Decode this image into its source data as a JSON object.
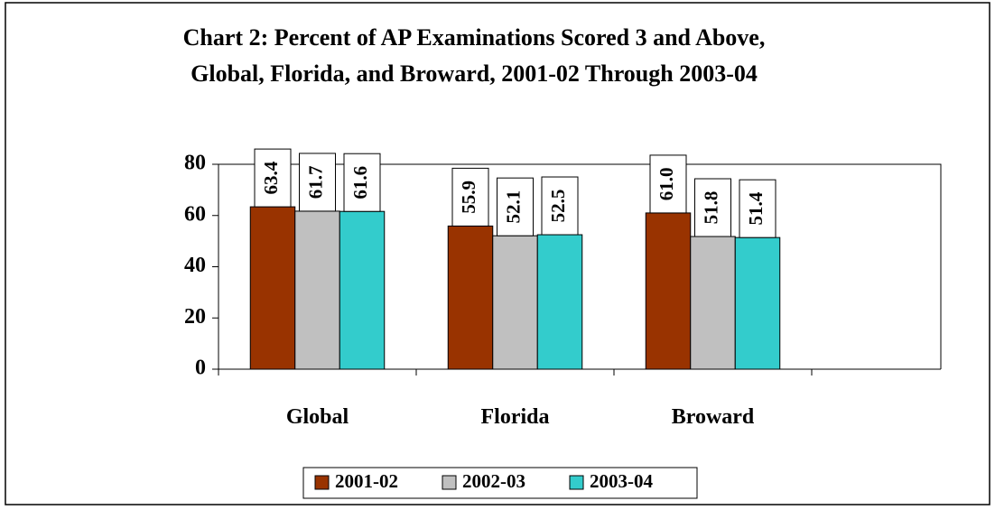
{
  "chart_data": {
    "type": "bar",
    "title": [
      "Chart 2:  Percent of AP Examinations Scored 3 and Above,",
      "Global, Florida, and Broward, 2001-02 Through 2003-04"
    ],
    "categories": [
      "Global",
      "Florida",
      "Broward"
    ],
    "series": [
      {
        "name": "2001-02",
        "color": "#993300",
        "values": [
          63.4,
          55.9,
          61.0
        ],
        "value_labels": [
          "63.4",
          "55.9",
          "61.0"
        ]
      },
      {
        "name": "2002-03",
        "color": "#c0c0c0",
        "values": [
          61.7,
          52.1,
          51.8
        ],
        "value_labels": [
          "61.7",
          "52.1",
          "51.8"
        ]
      },
      {
        "name": "2003-04",
        "color": "#33cccc",
        "values": [
          61.6,
          52.5,
          51.4
        ],
        "value_labels": [
          "61.6",
          "52.5",
          "51.4"
        ]
      }
    ],
    "ylim": [
      0,
      80
    ],
    "yticks": [
      0,
      20,
      40,
      60,
      80
    ],
    "grid": false,
    "legend": "bottom"
  }
}
